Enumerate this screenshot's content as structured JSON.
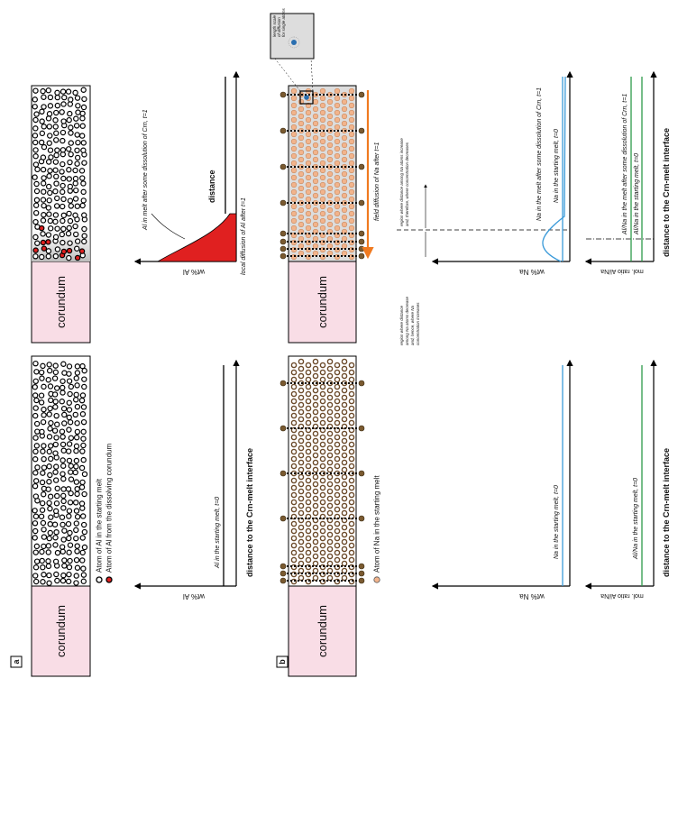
{
  "corundum": "corundum",
  "panel_a": {
    "label": "a",
    "legend": [
      "Atom of Al in the starting melt",
      "Atom of Al from the dissolving corundum"
    ],
    "t0": {
      "y_axis": "wt% Al",
      "line": "Al in the starting melt, t=0",
      "x_axis": "distance to the Crn-melt interface"
    },
    "t1": {
      "y_axis": "wt% Al",
      "line": "Al in melt after some dissolution of Crn, t=1",
      "diffusion": "local diffusion of Al after t=1",
      "x_axis": "distance"
    }
  },
  "panel_b": {
    "label": "b",
    "legend": "Atom of Na in the starting melt",
    "t0": {
      "na_axis": "wt% Na",
      "na_line": "Na in the starting melt, t=0",
      "ratio_axis": "mol. ratio Al/Na",
      "ratio_line": "Al/Na in the starting melt, t=0",
      "x_axis": "distance to the Crn-melt interface"
    },
    "t1": {
      "field": "field diffusion of Na after t=1",
      "inset": [
        "length scale",
        "of diffusion",
        "for single atoms"
      ],
      "region_increase": [
        "region where distance among Na atoms increase",
        "and, therefore, where concentration decreases"
      ],
      "region_decrease": [
        "region where distance",
        "among Na atoms decrease",
        "and, hence, where Na",
        "concentration increases"
      ],
      "na_axis": "wt% Na",
      "na_line_t1": "Na in the melt after some dissolution of Crn, t=1",
      "na_line_t0": "Na in the starting melt, t=0",
      "ratio_axis": "mol. ratio Al/Na",
      "ratio_line_t1": "Al/Na in the melt after some dissolution of Crn, t=1",
      "ratio_line_t0": "Al/Na in the starting melt, t=0",
      "x_axis": "distance to the Crn-melt interface"
    }
  }
}
